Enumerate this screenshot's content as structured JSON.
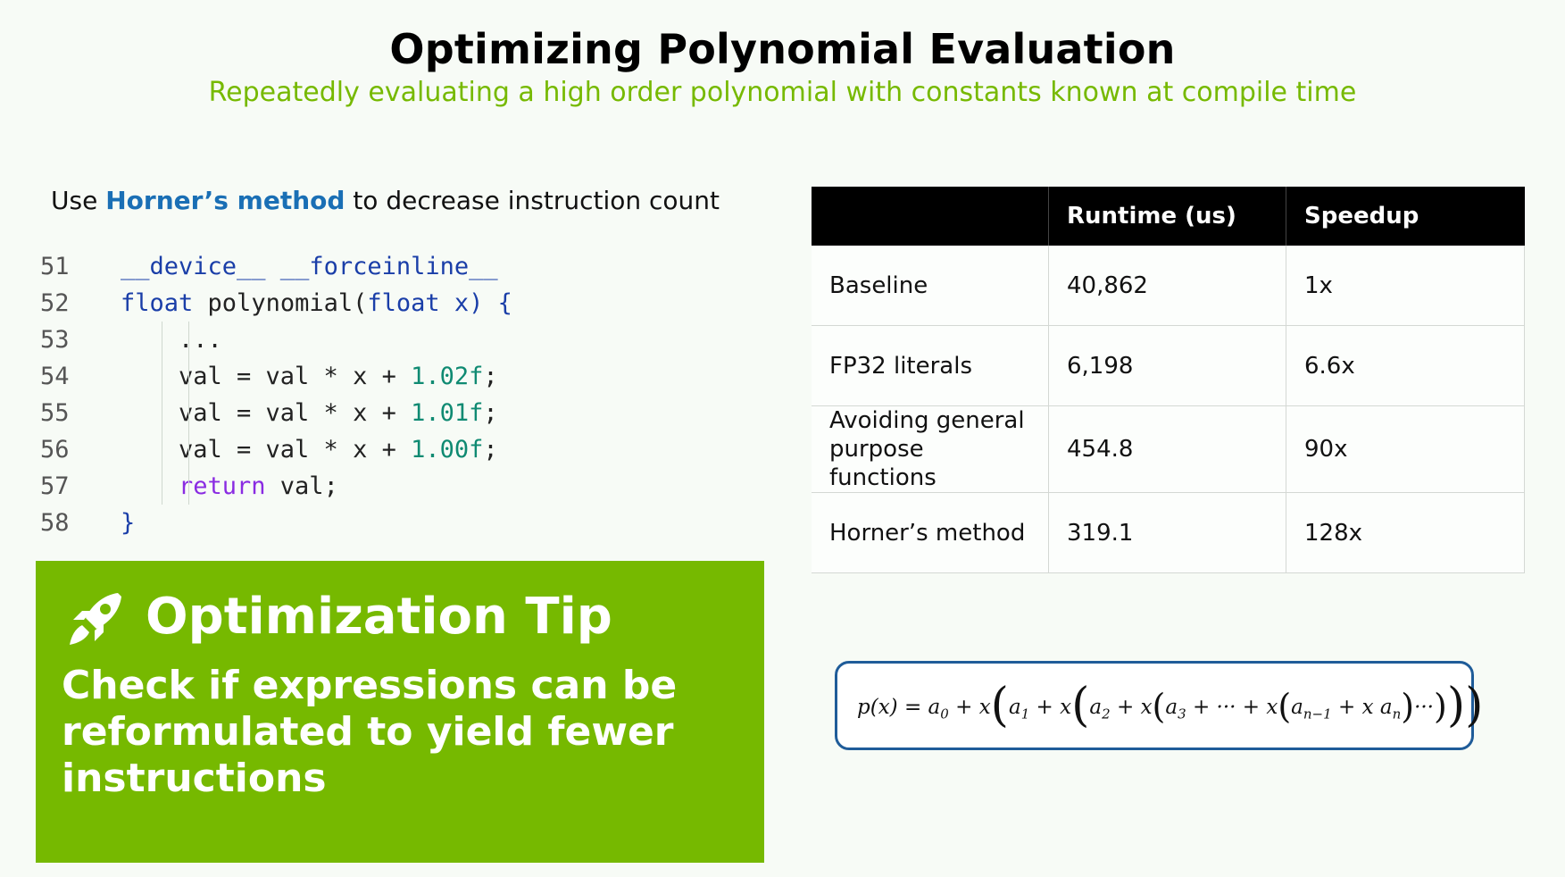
{
  "title": "Optimizing Polynomial Evaluation",
  "subtitle": "Repeatedly evaluating a high order polynomial with constants known at compile time",
  "intro": {
    "prefix": "Use ",
    "highlight": "Horner’s method",
    "suffix": " to decrease instruction count"
  },
  "code": {
    "lines": [
      {
        "number": "51",
        "indent": 0,
        "tokens": [
          {
            "t": "__device__ __forceinline__",
            "c": "kw"
          }
        ]
      },
      {
        "number": "52",
        "indent": 0,
        "tokens": [
          {
            "t": "float ",
            "c": "kw"
          },
          {
            "t": "polynomial(",
            "c": "text"
          },
          {
            "t": "float ",
            "c": "kw"
          },
          {
            "t": "x) {",
            "c": "kw"
          }
        ]
      },
      {
        "number": "53",
        "indent": 2,
        "tokens": [
          {
            "t": "...",
            "c": "text"
          }
        ]
      },
      {
        "number": "54",
        "indent": 2,
        "tokens": [
          {
            "t": "val = val * x + ",
            "c": "text"
          },
          {
            "t": "1.02f",
            "c": "num"
          },
          {
            "t": ";",
            "c": "text"
          }
        ]
      },
      {
        "number": "55",
        "indent": 2,
        "tokens": [
          {
            "t": "val = val * x + ",
            "c": "text"
          },
          {
            "t": "1.01f",
            "c": "num"
          },
          {
            "t": ";",
            "c": "text"
          }
        ]
      },
      {
        "number": "56",
        "indent": 2,
        "tokens": [
          {
            "t": "val = val * x + ",
            "c": "text"
          },
          {
            "t": "1.00f",
            "c": "num"
          },
          {
            "t": ";",
            "c": "text"
          }
        ]
      },
      {
        "number": "57",
        "indent": 2,
        "tokens": [
          {
            "t": "return ",
            "c": "ret"
          },
          {
            "t": "val;",
            "c": "text"
          }
        ]
      },
      {
        "number": "58",
        "indent": 0,
        "tokens": [
          {
            "t": "}",
            "c": "kw"
          }
        ]
      }
    ]
  },
  "tip": {
    "icon": "rocket-icon",
    "title": "Optimization Tip",
    "body": "Check if expressions can be reformulated to yield fewer instructions"
  },
  "table": {
    "headers": [
      "",
      "Runtime (us)",
      "Speedup"
    ],
    "rows": [
      [
        "Baseline",
        "40,862",
        "1x"
      ],
      [
        "FP32 literals",
        "6,198",
        "6.6x"
      ],
      [
        "Avoiding general purpose functions",
        "454.8",
        "90x"
      ],
      [
        "Horner’s method",
        "319.1",
        "128x"
      ]
    ]
  },
  "formula": {
    "p": "p(x) = a",
    "parts": {
      "a0_sub": "0",
      "plus_x": " + x",
      "a1": "a",
      "a1_sub": "1",
      "a2": "a",
      "a2_sub": "2",
      "a3": "a",
      "a3_sub": "3",
      "dots": " + ··· + x",
      "an1": "a",
      "an1_sub": "n−1",
      "xan": " + x a",
      "an_sub": "n",
      "tail": "···"
    }
  },
  "colors": {
    "accent": "#76b900",
    "link": "#1a6fb5",
    "formula_border": "#1f5c99",
    "table_header": "#000000"
  }
}
